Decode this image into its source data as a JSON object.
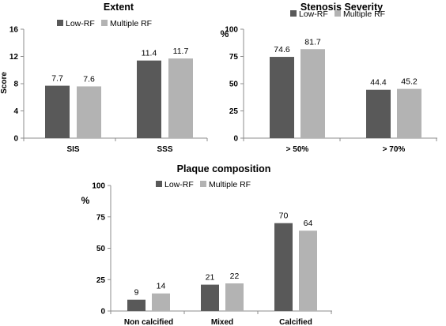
{
  "colors": {
    "low_rf": "#595959",
    "multiple_rf": "#b3b3b3",
    "axis": "#8c8c8c",
    "text": "#000000"
  },
  "legend": [
    "Low-RF",
    "Multiple RF"
  ],
  "chart_data": [
    {
      "type": "bar",
      "title": "Extent",
      "ylabel": "Score",
      "xlabel": "",
      "ylim": [
        0,
        16
      ],
      "yticks": [
        "0",
        "4",
        "8",
        "12",
        "16"
      ],
      "categories": [
        "SIS",
        "SSS"
      ],
      "series": [
        {
          "name": "Low-RF",
          "values": [
            7.7,
            11.4
          ],
          "labels": [
            "7.7",
            "11.4"
          ]
        },
        {
          "name": "Multiple RF",
          "values": [
            7.6,
            11.7
          ],
          "labels": [
            "7.6",
            "11.7"
          ]
        }
      ],
      "grid": false,
      "legend_position": "top"
    },
    {
      "type": "bar",
      "title": "Stenosis Severity",
      "ylabel": "%",
      "xlabel": "",
      "ylim": [
        0,
        100
      ],
      "yticks": [
        "0",
        "25",
        "50",
        "75",
        "100"
      ],
      "categories": [
        "> 50%",
        "> 70%"
      ],
      "series": [
        {
          "name": "Low-RF",
          "values": [
            74.6,
            44.4
          ],
          "labels": [
            "74.6",
            "44.4"
          ]
        },
        {
          "name": "Multiple RF",
          "values": [
            81.7,
            45.2
          ],
          "labels": [
            "81.7",
            "45.2"
          ]
        }
      ],
      "grid": false,
      "legend_position": "top"
    },
    {
      "type": "bar",
      "title": "Plaque composition",
      "ylabel": "%",
      "xlabel": "",
      "ylim": [
        0,
        100
      ],
      "yticks": [
        "0",
        "25",
        "50",
        "75",
        "100"
      ],
      "categories": [
        "Non calcified",
        "Mixed",
        "Calcified"
      ],
      "series": [
        {
          "name": "Low-RF",
          "values": [
            9,
            21,
            70
          ],
          "labels": [
            "9",
            "21",
            "70"
          ]
        },
        {
          "name": "Multiple RF",
          "values": [
            14,
            22,
            64
          ],
          "labels": [
            "14",
            "22",
            "64"
          ]
        }
      ],
      "grid": false,
      "legend_position": "top"
    }
  ]
}
